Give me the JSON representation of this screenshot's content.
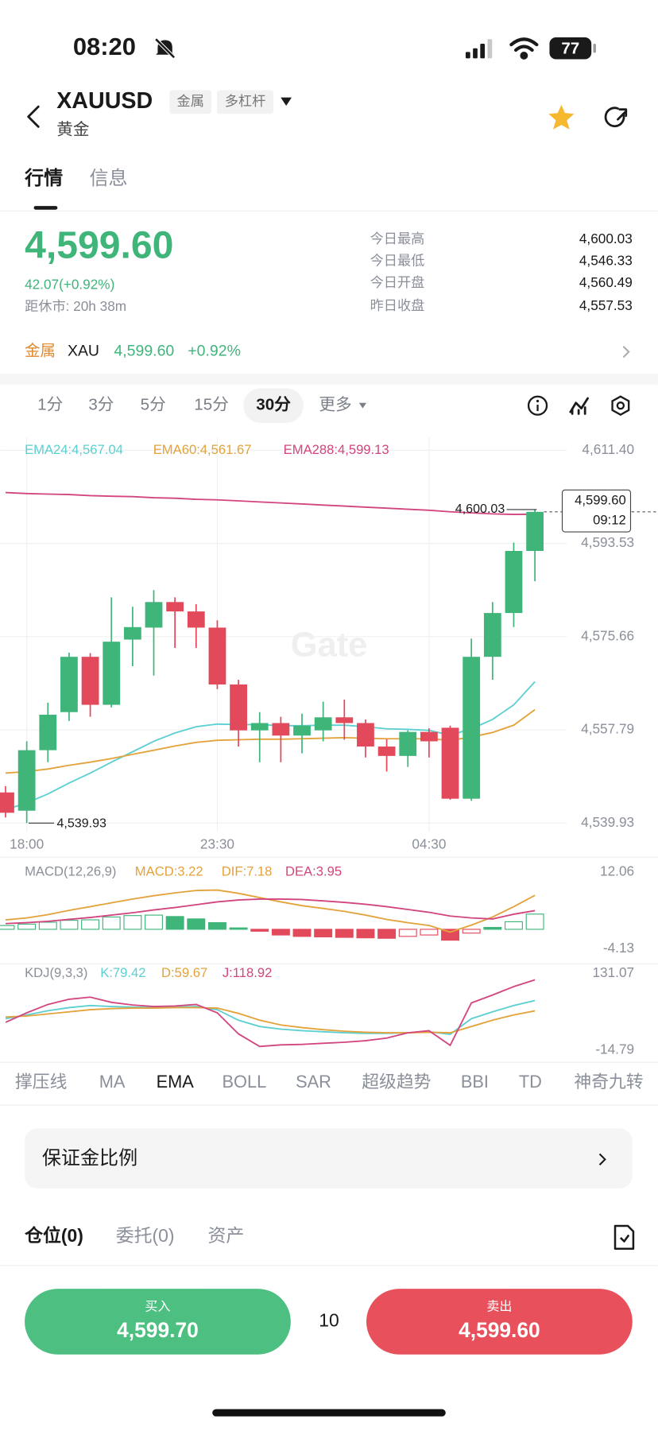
{
  "status_bar": {
    "time": "08:20",
    "battery": "77"
  },
  "header": {
    "symbol": "XAUUSD",
    "tags": [
      "金属",
      "多杠杆"
    ],
    "subtitle": "黄金"
  },
  "tabs": {
    "items": [
      "行情",
      "信息"
    ],
    "active": 0
  },
  "quote": {
    "price": "4,599.60",
    "change": "42.07(+0.92%)",
    "close_timer": "距休市: 20h 38m",
    "stats": [
      {
        "label": "今日最高",
        "value": "4,600.03"
      },
      {
        "label": "今日最低",
        "value": "4,546.33"
      },
      {
        "label": "今日开盘",
        "value": "4,560.49"
      },
      {
        "label": "昨日收盘",
        "value": "4,557.53"
      }
    ]
  },
  "related": {
    "category": "金属",
    "symbol": "XAU",
    "price": "4,599.60",
    "change": "+0.92%"
  },
  "intervals": {
    "items": [
      "1分",
      "3分",
      "5分",
      "15分",
      "30分",
      "更多"
    ],
    "active": 4
  },
  "chart_data": [
    {
      "type": "candlestick",
      "categories": [
        null,
        "18:00",
        null,
        null,
        null,
        null,
        null,
        null,
        null,
        null,
        "23:30",
        null,
        null,
        null,
        null,
        null,
        null,
        null,
        null,
        null,
        "04:30",
        null,
        null,
        null,
        null,
        null
      ],
      "open": [
        4545.8,
        4542.3,
        4553.9,
        4561.2,
        4571.8,
        4562.6,
        4575.1,
        4577.4,
        4582.3,
        4580.5,
        4577.4,
        4566.5,
        4557.7,
        4559.1,
        4556.7,
        4557.7,
        4560.2,
        4559.1,
        4554.6,
        4552.8,
        4557.4,
        4558.2,
        4544.6,
        4571.8,
        4580.2,
        4592.1
      ],
      "high": [
        4547.0,
        4555.6,
        4563.0,
        4572.6,
        4572.5,
        4583.2,
        4581.4,
        4584.6,
        4583.2,
        4581.9,
        4578.8,
        4567.4,
        4561.2,
        4560.3,
        4560.9,
        4563.2,
        4563.6,
        4559.8,
        4556.0,
        4557.7,
        4558.1,
        4558.6,
        4575.3,
        4582.3,
        4593.7,
        4600.03
      ],
      "low": [
        4541.0,
        4539.93,
        4551.6,
        4559.5,
        4560.3,
        4562.1,
        4570.0,
        4568.2,
        4573.5,
        4573.5,
        4565.6,
        4554.6,
        4551.6,
        4551.6,
        4553.3,
        4555.6,
        4555.9,
        4552.5,
        4549.8,
        4550.7,
        4552.5,
        4544.4,
        4544.2,
        4567.4,
        4577.5,
        4586.3
      ],
      "close": [
        4541.9,
        4553.9,
        4560.7,
        4571.8,
        4562.6,
        4574.7,
        4577.5,
        4582.3,
        4580.5,
        4577.4,
        4566.5,
        4557.7,
        4559.1,
        4556.7,
        4558.6,
        4560.2,
        4559.1,
        4554.6,
        4552.8,
        4557.4,
        4555.6,
        4544.6,
        4571.8,
        4580.2,
        4592.1,
        4599.6
      ],
      "up_color": "#3fb57a",
      "down_color": "#e2495a",
      "series": [
        {
          "name": "EMA24:4,567.04",
          "color": "#5ccfd0",
          "values": [
            4542.5,
            4543.8,
            4545.5,
            4547.6,
            4549.5,
            4551.6,
            4553.6,
            4555.6,
            4557.2,
            4558.4,
            4558.9,
            4558.8,
            4558.8,
            4558.6,
            4558.6,
            4558.7,
            4558.7,
            4558.4,
            4558.0,
            4557.9,
            4557.7,
            4556.8,
            4558.0,
            4559.8,
            4562.6,
            4567.04
          ]
        },
        {
          "name": "EMA60:4,561.67",
          "color": "#e3a23b",
          "values": [
            4549.5,
            4549.8,
            4550.3,
            4551.0,
            4551.6,
            4552.3,
            4553.1,
            4553.9,
            4554.7,
            4555.4,
            4555.8,
            4555.9,
            4556.0,
            4556.0,
            4556.1,
            4556.2,
            4556.3,
            4556.2,
            4556.1,
            4556.1,
            4556.1,
            4555.8,
            4556.4,
            4557.3,
            4558.7,
            4561.67
          ]
        },
        {
          "name": "EMA288:4,599.13",
          "color": "#d2457f",
          "values": [
            4603.3,
            4603.1,
            4603.0,
            4602.9,
            4602.7,
            4602.6,
            4602.5,
            4602.3,
            4602.2,
            4602.0,
            4601.9,
            4601.7,
            4601.5,
            4601.3,
            4601.1,
            4600.9,
            4600.7,
            4600.5,
            4600.3,
            4600.1,
            4599.9,
            4599.6,
            4599.4,
            4599.2,
            4599.1,
            4599.13
          ]
        }
      ],
      "ylim": [
        4539.93,
        4611.4
      ],
      "yticks": [
        {
          "value": 4611.4,
          "label": "4,611.40"
        },
        {
          "value": 4593.53,
          "label": "4,593.53"
        },
        {
          "value": 4575.66,
          "label": "4,575.66"
        },
        {
          "value": 4557.79,
          "label": "4,557.79"
        },
        {
          "value": 4539.93,
          "label": "4,539.93"
        }
      ],
      "grid": true,
      "annotations": {
        "high_label": "4,600.03",
        "low_label": "4,539.93",
        "last_price": "4,599.60",
        "countdown": "09:12",
        "watermark": "Gate"
      }
    },
    {
      "type": "macd",
      "title": "MACD(12,26,9)",
      "histogram": {
        "name": "MACD:3.22",
        "color": "#e3a23b",
        "up_color": "#3fb57a",
        "down_color": "#e2495a",
        "values": [
          0.8,
          1.1,
          1.5,
          1.9,
          2.0,
          2.6,
          2.9,
          3.0,
          2.7,
          2.2,
          1.4,
          0.3,
          -0.4,
          -1.2,
          -1.5,
          -1.6,
          -1.7,
          -1.8,
          -1.9,
          -1.5,
          -1.2,
          -2.3,
          -0.8,
          0.4,
          1.6,
          3.22
        ]
      },
      "series": [
        {
          "name": "DIF:7.18",
          "color": "#e3a23b",
          "values": [
            2.0,
            2.4,
            3.1,
            4.0,
            4.8,
            5.6,
            6.4,
            7.1,
            7.7,
            8.2,
            8.3,
            7.6,
            6.7,
            5.8,
            5.0,
            4.4,
            3.8,
            3.0,
            2.1,
            1.4,
            0.8,
            -0.6,
            0.9,
            2.6,
            4.8,
            7.18
          ]
        },
        {
          "name": "DEA:3.95",
          "color": "#d2457f",
          "values": [
            1.2,
            1.4,
            1.7,
            2.1,
            2.5,
            3.0,
            3.5,
            4.1,
            4.6,
            5.2,
            5.8,
            6.2,
            6.4,
            6.4,
            6.3,
            6.0,
            5.7,
            5.3,
            4.8,
            4.2,
            3.6,
            2.8,
            2.4,
            2.2,
            3.2,
            3.95
          ]
        }
      ],
      "ylim": [
        -4.13,
        12.06
      ],
      "yticks": [
        12.06,
        -4.13
      ]
    },
    {
      "type": "line",
      "title": "KDJ(9,3,3)",
      "series": [
        {
          "name": "K:79.42",
          "color": "#5ccfd0",
          "values": [
            45,
            52,
            60,
            66,
            70,
            68,
            67,
            66,
            67,
            68,
            62,
            42,
            30,
            25,
            22,
            20,
            18,
            17,
            17,
            18,
            20,
            15,
            45,
            58,
            70,
            79.42
          ]
        },
        {
          "name": "D:59.67",
          "color": "#e3a23b",
          "values": [
            48,
            50,
            54,
            58,
            62,
            64,
            65,
            65,
            66,
            66,
            65,
            55,
            42,
            33,
            28,
            24,
            21,
            19,
            18,
            18,
            19,
            18,
            30,
            42,
            52,
            59.67
          ]
        },
        {
          "name": "J:118.92",
          "color": "#d2457f",
          "values": [
            38,
            56,
            72,
            82,
            86,
            76,
            71,
            68,
            69,
            72,
            56,
            16,
            -8,
            -5,
            -4,
            -2,
            0,
            3,
            8,
            18,
            22,
            -6,
            75,
            90,
            106,
            118.92
          ]
        }
      ],
      "ylim": [
        -14.79,
        131.07
      ],
      "yticks": [
        131.07,
        -14.79
      ]
    }
  ],
  "indicators": {
    "items": [
      "撑压线",
      "MA",
      "EMA",
      "BOLL",
      "SAR",
      "超级趋势",
      "BBI",
      "TD",
      "神奇九转"
    ],
    "active": 2
  },
  "margin_row": {
    "label": "保证金比例"
  },
  "position_tabs": {
    "items": [
      "仓位(0)",
      "委托(0)",
      "资产"
    ],
    "active": 0
  },
  "trade": {
    "buy": {
      "label": "买入",
      "price": "4,599.70"
    },
    "quantity": "10",
    "sell": {
      "label": "卖出",
      "price": "4,599.60"
    }
  }
}
